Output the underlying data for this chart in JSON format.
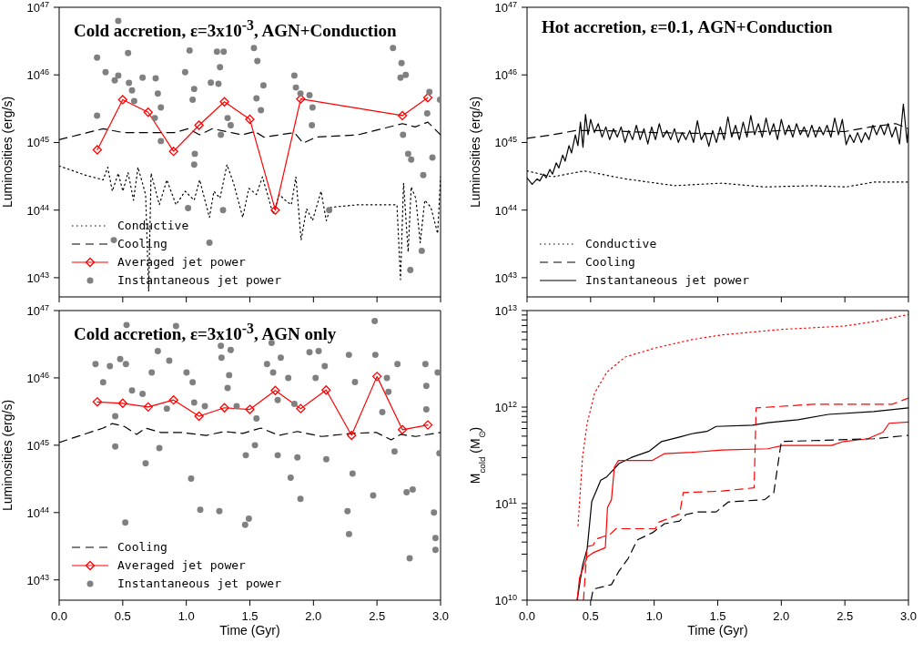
{
  "chart_data": [
    {
      "type": "line",
      "title": "Cold accretion, ε=3x10$^{-3}$, AGN+Conduction",
      "ylabel": "Luminosities (erg/s)",
      "log": "y",
      "xlim": [
        0,
        3
      ],
      "ylim": [
        5.2e+42,
        1e+47
      ],
      "xticks": [
        0,
        0.5,
        1,
        1.5,
        2,
        2.5,
        3
      ],
      "yticks": [
        {
          "value": 1e+43,
          "label": "10$^{43}$"
        },
        {
          "value": 1e+44,
          "label": "10$^{44}$"
        },
        {
          "value": 1e+45,
          "label": "10$^{45}$"
        },
        {
          "value": 1e+46,
          "label": "10$^{46}$"
        },
        {
          "value": 1e+47,
          "label": "10$^{47}$"
        }
      ],
      "tick_labels": "y",
      "legend": "bottom left",
      "series": [
        {
          "name": "Conductive",
          "type": "line",
          "color": "#000000",
          "line_style": "dotted",
          "marker": "none",
          "x": [
            0,
            0.203,
            0.346,
            0.382,
            0.418,
            0.465,
            0.501,
            0.542,
            0.585,
            0.62,
            0.68,
            0.704,
            0.723,
            0.788,
            0.847,
            0.919,
            0.991,
            1.062,
            1.105,
            1.182,
            1.217,
            1.265,
            1.32,
            1.372,
            1.444,
            1.492,
            1.552,
            1.599,
            1.683,
            1.731,
            1.778,
            1.826,
            1.862,
            1.903,
            1.946,
            1.993,
            2.06,
            2.101,
            2.136,
            2.351,
            2.657,
            2.685,
            2.709,
            2.745,
            2.769,
            2.805,
            2.84,
            2.876,
            2.924,
            2.977,
            3.0
          ],
          "values": [
            4.5e+44,
            3.3e+44,
            2.8e+44,
            4.3e+44,
            1.9e+44,
            3.5e+44,
            1.9e+44,
            3.6e+44,
            1.4e+44,
            4.3e+44,
            1.7e+44,
            6.3e+42,
            3.5e+44,
            1.2e+44,
            2.8e+44,
            1.2e+44,
            1.9e+44,
            1.4e+44,
            2.8e+44,
            7.8e+43,
            1.9e+44,
            1.5e+44,
            4.7e+44,
            2.5e+44,
            7.8e+43,
            2.1e+44,
            1.7e+44,
            3.1e+44,
            8.7e+43,
            1.7e+44,
            1.4e+44,
            1.2e+44,
            3.1e+44,
            3.6e+43,
            1.05e+44,
            7e+43,
            1.9e+44,
            7e+43,
            1.1e+44,
            1.2e+44,
            1.2e+44,
            9.4e+42,
            2.5e+44,
            2.4e+43,
            2.2e+44,
            1.5e+44,
            3.3e+43,
            1.4e+44,
            1.1e+44,
            4.5e+43,
            3.1e+44
          ]
        },
        {
          "name": "Cooling",
          "type": "line",
          "color": "#000000",
          "line_style": "dashed",
          "marker": "none",
          "x": [
            0,
            0.346,
            0.504,
            0.905,
            1.015,
            1.105,
            1.205,
            1.44,
            1.54,
            1.61,
            1.85,
            1.92,
            2.02,
            2.35,
            2.7,
            2.8,
            2.9,
            3.0
          ],
          "values": [
            1.1e+45,
            1.6e+45,
            1.4e+45,
            1.4e+45,
            1.6e+45,
            1.3e+45,
            1.6e+45,
            1.3e+45,
            1.45e+45,
            1.2e+45,
            1.4e+45,
            9.8e+44,
            1.2e+45,
            1.3e+45,
            1.9e+45,
            1.7e+45,
            2e+45,
            1.3e+45
          ]
        },
        {
          "name": "Averaged jet power",
          "type": "line",
          "color": "#ff0000",
          "line_style": "solid",
          "marker": "diamond",
          "x": [
            0.3,
            0.5,
            0.7,
            0.9,
            1.1,
            1.3,
            1.5,
            1.7,
            1.9,
            2.7,
            2.9
          ],
          "values": [
            7.8e+44,
            4.3e+45,
            2.8e+45,
            7.4e+44,
            1.8e+45,
            4e+45,
            2.2e+45,
            1e+44,
            4.4e+45,
            2.5e+45,
            4.6e+45
          ]
        },
        {
          "name": "Instantaneous jet power",
          "type": "scatter",
          "color": "#808080",
          "marker": "circle",
          "x": [
            0.298,
            0.365,
            0.437,
            0.465,
            0.542,
            0.549,
            0.573,
            0.59,
            0.656,
            0.759,
            0.776,
            0.8,
            0.752,
            0.8,
            0.991,
            1.062,
            1.05,
            1.026,
            1.193,
            1.253,
            1.241,
            1.294,
            1.265,
            1.325,
            1.349,
            1.272,
            1.067,
            1.062,
            1.532,
            1.559,
            1.552,
            1.607,
            1.587,
            1.85,
            1.862,
            1.898,
            1.969,
            1.993,
            1.988,
            2.626,
            2.693,
            2.685,
            2.726,
            2.745,
            2.769,
            2.864,
            2.936,
            2.912,
            2.895,
            0.298,
            0.465,
            1.014,
            1.289,
            1.182,
            0.43,
            2.762,
            2.852,
            2.705,
            2.996,
            2.124
          ],
          "values": [
            1.8e+46,
            1.1e+46,
            8.3e+45,
            9.8e+45,
            2.1e+46,
            7.6e+45,
            5.9e+45,
            4.1e+45,
            9.1e+45,
            8.9e+45,
            5.3e+45,
            3.3e+45,
            2.3e+45,
            1.05e+45,
            1.1e+46,
            6.2e+45,
            4.3e+45,
            2.3e+46,
            7.7e+45,
            7.4e+45,
            2.2e+46,
            2.2e+46,
            1.3e+46,
            2.3e+45,
            1.8e+45,
            1.3e+45,
            6.8e+44,
            4.7e+44,
            2.5e+46,
            1.6e+46,
            4.5e+45,
            7e+45,
            3e+45,
            9.8e+45,
            6.5e+45,
            5.3e+45,
            5e+45,
            3.3e+45,
            1.8e+45,
            2.5e+46,
            1.5e+46,
            9.1e+45,
            1e+46,
            6.8e+44,
            5.6e+44,
            3.3e+44,
            6e+44,
            5.6e+45,
            2.7e+45,
            2.5e+45,
            6.3e+46,
            1.07e+44,
            1e+44,
            3.3e+43,
            3.6e+43,
            1.3e+43,
            2.5e+43,
            1.3e+45,
            4.3e+45,
            1e+44
          ]
        }
      ]
    },
    {
      "type": "line",
      "title": "Hot accretion, ε=0.1, AGN+Conduction",
      "ylabel": "Luminosities (erg/s)",
      "log": "y",
      "xlim": [
        0,
        3
      ],
      "ylim": [
        5.2e+42,
        1e+47
      ],
      "xticks": [
        0,
        0.5,
        1,
        1.5,
        2,
        2.5,
        3
      ],
      "yticks": [
        {
          "value": 1e+43,
          "label": "10$^{43}$"
        },
        {
          "value": 1e+44,
          "label": "10$^{44}$"
        },
        {
          "value": 1e+45,
          "label": "10$^{45}$"
        },
        {
          "value": 1e+46,
          "label": "10$^{46}$"
        },
        {
          "value": 1e+47,
          "label": "10$^{47}$"
        }
      ],
      "tick_labels": "y",
      "legend": "bottom left",
      "series": [
        {
          "name": "Conductive",
          "type": "line",
          "color": "#000000",
          "line_style": "dotted",
          "marker": "none",
          "x": [
            0,
            0.2,
            0.45,
            0.77,
            1.16,
            1.53,
            1.87,
            2.25,
            2.51,
            2.73,
            3.0
          ],
          "values": [
            3.8e+44,
            3.1e+44,
            3.8e+44,
            2.9e+44,
            2.3e+44,
            2.5e+44,
            2.2e+44,
            2.3e+44,
            2.2e+44,
            2.6e+44,
            2.6e+44
          ]
        },
        {
          "name": "Cooling",
          "type": "line",
          "color": "#000000",
          "line_style": "dashed",
          "marker": "none",
          "x": [
            0,
            0.2,
            0.38,
            0.6,
            1.0,
            1.5,
            2.0,
            2.5,
            2.7,
            2.9,
            3.0
          ],
          "values": [
            1.15e+45,
            1.3e+45,
            1.5e+45,
            1.5e+45,
            1.4e+45,
            1.35e+45,
            1.5e+45,
            1.45e+45,
            1.7e+45,
            1.9e+45,
            1.6e+45
          ]
        },
        {
          "name": "Instantaneous jet power",
          "type": "line",
          "color": "#000000",
          "line_style": "solid",
          "marker": "none",
          "x": [
            0,
            0.04,
            0.08,
            0.1,
            0.13,
            0.15,
            0.18,
            0.2,
            0.23,
            0.25,
            0.28,
            0.3,
            0.33,
            0.35,
            0.38,
            0.4,
            0.42,
            0.44,
            0.46,
            0.48,
            0.5,
            0.53,
            0.56,
            0.59,
            0.62,
            0.65,
            0.68,
            0.71,
            0.74,
            0.77,
            0.8,
            0.83,
            0.86,
            0.89,
            0.92,
            0.95,
            0.98,
            1.01,
            1.04,
            1.07,
            1.1,
            1.13,
            1.16,
            1.19,
            1.22,
            1.25,
            1.28,
            1.31,
            1.34,
            1.37,
            1.4,
            1.43,
            1.46,
            1.49,
            1.52,
            1.55,
            1.58,
            1.61,
            1.64,
            1.67,
            1.7,
            1.73,
            1.76,
            1.79,
            1.82,
            1.85,
            1.88,
            1.91,
            1.94,
            1.97,
            2.0,
            2.03,
            2.06,
            2.09,
            2.12,
            2.15,
            2.18,
            2.21,
            2.24,
            2.27,
            2.3,
            2.33,
            2.36,
            2.39,
            2.42,
            2.45,
            2.48,
            2.51,
            2.54,
            2.57,
            2.6,
            2.63,
            2.66,
            2.69,
            2.72,
            2.75,
            2.78,
            2.81,
            2.84,
            2.87,
            2.9,
            2.93,
            2.96,
            2.99,
            3.0
          ],
          "values": [
            3e+44,
            2.4e+44,
            2.9e+44,
            2.7e+44,
            3.4e+44,
            3e+44,
            4e+44,
            3.4e+44,
            5e+44,
            4.2e+44,
            6.5e+44,
            5.3e+44,
            9e+44,
            7e+44,
            1.3e+45,
            9e+44,
            2e+45,
            8.5e+44,
            2.6e+45,
            1.3e+45,
            2.2e+45,
            1.4e+45,
            1.9e+45,
            1.2e+45,
            1.7e+45,
            1.1e+45,
            1.6e+45,
            1.2e+45,
            1.7e+45,
            1e+45,
            1.5e+45,
            1.1e+45,
            1.8e+45,
            1.1e+45,
            1.6e+45,
            9.5e+44,
            1.7e+45,
            1.1e+45,
            1.9e+45,
            1.2e+45,
            1.5e+45,
            1.1e+45,
            1.6e+45,
            1e+45,
            1.4e+45,
            1.1e+45,
            1.5e+45,
            1e+45,
            2.1e+45,
            1.1e+45,
            1.4e+45,
            8.8e+44,
            1.5e+45,
            1e+45,
            1.7e+45,
            1.1e+45,
            2.4e+45,
            1.2e+45,
            1.8e+45,
            1.1e+45,
            2e+45,
            1.2e+45,
            2.5e+45,
            1.3e+45,
            1.9e+45,
            1.2e+45,
            2.3e+45,
            1.3e+45,
            1.9e+45,
            1.1e+45,
            2.2e+45,
            1.3e+45,
            1.8e+45,
            1.2e+45,
            1.9e+45,
            1.3e+45,
            1.7e+45,
            1.2e+45,
            1.8e+45,
            1.2e+45,
            1.7e+45,
            1.3e+45,
            1.8e+45,
            1.2e+45,
            2.3e+45,
            1.3e+45,
            2.2e+45,
            9.3e+44,
            1.3e+45,
            1e+45,
            1.4e+45,
            1e+45,
            1.4e+45,
            1.1e+45,
            1.8e+45,
            1.3e+45,
            1.8e+45,
            1.3e+45,
            1.9e+45,
            1.2e+45,
            1.7e+45,
            9.5e+44,
            3.7e+45,
            1e+45,
            1.6e+45
          ]
        }
      ]
    },
    {
      "type": "line",
      "title": "Cold accretion, ε=3x10$^{-3}$, AGN only",
      "ylabel": "Luminosities (erg/s)",
      "xlabel": "Time (Gyr)",
      "log": "y",
      "xlim": [
        0,
        3
      ],
      "ylim": [
        5e+42,
        1e+47
      ],
      "xticks": [
        {
          "value": 0,
          "label": "0.0"
        },
        {
          "value": 0.5,
          "label": "0.5"
        },
        {
          "value": 1,
          "label": "1.0"
        },
        {
          "value": 1.5,
          "label": "1.5"
        },
        {
          "value": 2,
          "label": "2.0"
        },
        {
          "value": 2.5,
          "label": "2.5"
        },
        {
          "value": 3,
          "label": "3.0"
        }
      ],
      "yticks": [
        {
          "value": 1e+43,
          "label": "10$^{43}$"
        },
        {
          "value": 1e+44,
          "label": "10$^{44}$"
        },
        {
          "value": 1e+45,
          "label": "10$^{45}$"
        },
        {
          "value": 1e+46,
          "label": "10$^{46}$"
        },
        {
          "value": 1e+47,
          "label": "10$^{47}$"
        }
      ],
      "legend": "bottom left",
      "series": [
        {
          "name": "Cooling",
          "type": "line",
          "color": "#000000",
          "line_style": "dashed",
          "marker": "none",
          "x": [
            0,
            0.346,
            0.418,
            0.513,
            0.609,
            0.68,
            0.8,
            0.955,
            1.158,
            1.301,
            1.444,
            1.587,
            1.73,
            1.874,
            1.945,
            2.065,
            2.303,
            2.494,
            2.612,
            2.686,
            2.805,
            3.0
          ],
          "values": [
            1.1e+45,
            1.8e+45,
            2.1e+45,
            1.9e+45,
            1.45e+45,
            1.8e+45,
            1.55e+45,
            1.55e+45,
            1.4e+45,
            1.6e+45,
            1.5e+45,
            1.8e+45,
            1.4e+45,
            1.6e+45,
            1.5e+45,
            1.35e+45,
            1.5e+45,
            1.55e+45,
            1.2e+45,
            1.45e+45,
            1.35e+45,
            1.55e+45
          ]
        },
        {
          "name": "Averaged jet power",
          "type": "line",
          "color": "#ff0000",
          "line_style": "solid",
          "marker": "diamond",
          "x": [
            0.3,
            0.5,
            0.7,
            0.9,
            1.1,
            1.3,
            1.5,
            1.7,
            1.9,
            2.1,
            2.3,
            2.5,
            2.7,
            2.9
          ],
          "values": [
            4.4e+45,
            4.2e+45,
            3.7e+45,
            4.7e+45,
            2.7e+45,
            3.6e+45,
            3.4e+45,
            6.5e+45,
            3.5e+45,
            6.6e+45,
            1.4e+45,
            1.05e+46,
            1.7e+45,
            2e+45
          ]
        },
        {
          "name": "Instantaneous jet power",
          "type": "scatter",
          "color": "#808080",
          "marker": "circle",
          "x": [
            0.286,
            0.346,
            0.399,
            0.48,
            0.525,
            0.53,
            0.441,
            0.441,
            0.573,
            0.656,
            0.68,
            0.52,
            0.728,
            0.776,
            0.866,
            0.847,
            0.788,
            0.919,
            1.002,
            1.05,
            1.062,
            1.038,
            1.11,
            1.146,
            1.26,
            1.272,
            1.277,
            1.349,
            1.337,
            1.325,
            1.396,
            1.468,
            1.463,
            1.492,
            1.54,
            1.552,
            1.635,
            1.671,
            1.683,
            1.719,
            1.719,
            1.743,
            1.802,
            1.821,
            1.85,
            1.898,
            1.874,
            1.969,
            2.017,
            2.041,
            2.089,
            2.101,
            2.279,
            2.327,
            2.268,
            2.28,
            2.308,
            2.482,
            2.487,
            2.578,
            2.59,
            2.542,
            2.47,
            2.638,
            2.661,
            2.733,
            2.757,
            2.781,
            2.881,
            2.888,
            2.888,
            2.96,
            2.96,
            2.977,
            2.991,
            2.948
          ],
          "values": [
            1.6e+46,
            8.6e+45,
            1.5e+46,
            1.9e+46,
            1.6e+46,
            6.1e+46,
            2.7e+45,
            9.6e+44,
            6.5e+45,
            5.8e+45,
            5.4e+44,
            7.1e+43,
            1.2e+46,
            2.5e+46,
            1.8e+46,
            3.5e+45,
            9.1e+44,
            5.9e+46,
            1.2e+46,
            8.6e+45,
            4.3e+45,
            3.2e+44,
            1.1e+44,
            3.8e+45,
            1.05e+44,
            3e+46,
            2e+46,
            2.6e+46,
            1.1e+46,
            7.1e+45,
            3.8e+45,
            7.1e+44,
            6.6e+43,
            8.1e+43,
            1e+45,
            2.5e+45,
            1.6e+46,
            3.3e+46,
            1.2e+46,
            4.7e+45,
            7.1e+44,
            2e+46,
            1e+46,
            3.3e+44,
            4.1e+45,
            1.6e+44,
            6.6e+44,
            2.4e+46,
            1e+46,
            2.5e+46,
            1.5e+46,
            6.2e+44,
            2.2e+46,
            8.7e+45,
            1.05e+44,
            4.8e+43,
            3.8e+44,
            7e+46,
            2.2e+46,
            1e+46,
            6.2e+45,
            3.1e+45,
            1.8e+44,
            8.1e+44,
            1.6e+46,
            2e+44,
            2.1e+43,
            2.2e+44,
            1.6e+46,
            7.6e+45,
            3.4e+45,
            4.2e+43,
            2.8e+43,
            1.2e+46,
            7.6e+44,
            1e+44
          ]
        }
      ]
    },
    {
      "type": "line",
      "ylabel": "M$_{cold}$ (M$_{⊙}$)",
      "xlabel": "Time (Gyr)",
      "log": "y",
      "xlim": [
        0,
        3
      ],
      "ylim": [
        10000000000.0,
        10000000000000.0
      ],
      "xticks": [
        {
          "value": 0,
          "label": "0.0"
        },
        {
          "value": 0.5,
          "label": "0.5"
        },
        {
          "value": 1,
          "label": "1.0"
        },
        {
          "value": 1.5,
          "label": "1.5"
        },
        {
          "value": 2,
          "label": "2.0"
        },
        {
          "value": 2.5,
          "label": "2.5"
        },
        {
          "value": 3,
          "label": "3.0"
        }
      ],
      "yticks": [
        {
          "value": 10000000000.0,
          "label": "10$^{10}$"
        },
        {
          "value": 20000000000.0,
          "label": null
        },
        {
          "value": 30000000000.0,
          "label": null
        },
        {
          "value": 40000000000.0,
          "label": null
        },
        {
          "value": 50000000000.0,
          "label": null
        },
        {
          "value": 60000000000.0,
          "label": null
        },
        {
          "value": 70000000000.0,
          "label": null
        },
        {
          "value": 80000000000.0,
          "label": null
        },
        {
          "value": 90000000000.0,
          "label": null
        },
        {
          "value": 100000000000.0,
          "label": "10$^{11}$"
        },
        {
          "value": 200000000000.0,
          "label": null
        },
        {
          "value": 300000000000.0,
          "label": null
        },
        {
          "value": 400000000000.0,
          "label": null
        },
        {
          "value": 500000000000.0,
          "label": null
        },
        {
          "value": 600000000000.0,
          "label": null
        },
        {
          "value": 700000000000.0,
          "label": null
        },
        {
          "value": 800000000000.0,
          "label": null
        },
        {
          "value": 900000000000.0,
          "label": null
        },
        {
          "value": 1000000000000.0,
          "label": "10$^{12}$"
        },
        {
          "value": 2000000000000.0,
          "label": null
        },
        {
          "value": 3000000000000.0,
          "label": null
        },
        {
          "value": 4000000000000.0,
          "label": null
        },
        {
          "value": 5000000000000.0,
          "label": null
        },
        {
          "value": 6000000000000.0,
          "label": null
        },
        {
          "value": 7000000000000.0,
          "label": null
        },
        {
          "value": 8000000000000.0,
          "label": null
        },
        {
          "value": 9000000000000.0,
          "label": null
        },
        {
          "value": 10000000000000.0,
          "label": "10$^{13}$"
        }
      ],
      "series": [
        {
          "color": "#ff0000",
          "line_style": "dotted",
          "x": [
            0.401,
            0.418,
            0.437,
            0.473,
            0.532,
            0.628,
            0.771,
            1.01,
            1.296,
            1.535,
            2.012,
            2.49,
            2.728,
            3.0
          ],
          "values": [
            59000000000.0,
            130000000000.0,
            310000000000.0,
            680000000000.0,
            1400000000000.0,
            2300000000000.0,
            3300000000000.0,
            4100000000000.0,
            5000000000000.0,
            5600000000000.0,
            6400000000000.0,
            6900000000000.0,
            7700000000000.0,
            9100000000000.0
          ]
        },
        {
          "color": "#000000",
          "line_style": "solid",
          "x": [
            0.394,
            0.437,
            0.473,
            0.509,
            0.58,
            0.628,
            0.687,
            0.723,
            0.819,
            0.962,
            1.058,
            1.2,
            1.296,
            1.415,
            1.487,
            1.774,
            1.893,
            2.132,
            2.37,
            2.728,
            3.0
          ],
          "values": [
            10000000000.0,
            23000000000.0,
            34000000000.0,
            105000000000.0,
            175000000000.0,
            190000000000.0,
            230000000000.0,
            260000000000.0,
            300000000000.0,
            350000000000.0,
            440000000000.0,
            490000000000.0,
            530000000000.0,
            560000000000.0,
            630000000000.0,
            650000000000.0,
            690000000000.0,
            740000000000.0,
            840000000000.0,
            900000000000.0,
            980000000000.0
          ]
        },
        {
          "color": "#ff0000",
          "line_style": "solid",
          "x": [
            0.394,
            0.413,
            0.473,
            0.52,
            0.616,
            0.633,
            0.664,
            0.687,
            0.719,
            0.986,
            1.082,
            1.296,
            1.535,
            1.893,
            2.012,
            2.394,
            2.49,
            2.68,
            2.8,
            2.848,
            3.0
          ],
          "values": [
            10000000000.0,
            17000000000.0,
            28000000000.0,
            31000000000.0,
            35000000000.0,
            91000000000.0,
            110000000000.0,
            240000000000.0,
            280000000000.0,
            280000000000.0,
            330000000000.0,
            340000000000.0,
            360000000000.0,
            370000000000.0,
            400000000000.0,
            400000000000.0,
            440000000000.0,
            470000000000.0,
            550000000000.0,
            680000000000.0,
            700000000000.0
          ]
        },
        {
          "color": "#ff0000",
          "line_style": "dashed",
          "x": [
            0.444,
            0.473,
            0.52,
            0.544,
            0.652,
            0.7,
            1.01,
            1.034,
            1.2,
            1.229,
            1.535,
            1.786,
            1.802,
            2.251,
            2.872,
            3.0
          ],
          "values": [
            10000000000.0,
            36000000000.0,
            37000000000.0,
            43000000000.0,
            48000000000.0,
            55000000000.0,
            55000000000.0,
            64000000000.0,
            78000000000.0,
            130000000000.0,
            135000000000.0,
            146000000000.0,
            980000000000.0,
            1070000000000.0,
            1070000000000.0,
            1240000000000.0
          ]
        },
        {
          "color": "#000000",
          "line_style": "dashed",
          "x": [
            0.504,
            0.52,
            0.664,
            0.723,
            0.795,
            0.867,
            0.986,
            1.082,
            1.2,
            1.249,
            1.344,
            1.487,
            1.583,
            1.869,
            1.941,
            2.0,
            2.251,
            2.728,
            3.0
          ],
          "values": [
            10000000000.0,
            13000000000.0,
            14500000000.0,
            20000000000.0,
            27000000000.0,
            42000000000.0,
            50000000000.0,
            62000000000.0,
            66000000000.0,
            77000000000.0,
            82000000000.0,
            82000000000.0,
            104000000000.0,
            110000000000.0,
            130000000000.0,
            440000000000.0,
            450000000000.0,
            470000000000.0,
            510000000000.0
          ]
        }
      ]
    }
  ]
}
